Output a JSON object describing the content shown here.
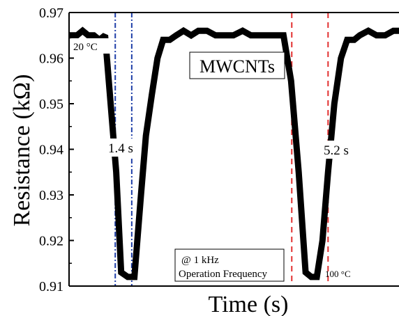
{
  "chart_data": {
    "type": "line",
    "title": "",
    "xlabel": "Time (s)",
    "ylabel": "Resistance (kΩ)",
    "ylim": [
      0.91,
      0.97
    ],
    "xlim": [
      0,
      100
    ],
    "yticks": [
      0.91,
      0.92,
      0.93,
      0.94,
      0.95,
      0.96,
      0.97
    ],
    "ytick_labels": [
      "0.91",
      "0.92",
      "0.93",
      "0.94",
      "0.95",
      "0.96",
      "0.97"
    ],
    "xticks_shown": false,
    "grid": false,
    "series": [
      {
        "color": "#000000",
        "x": [
          0,
          2.4,
          4.1,
          5.8,
          7.5,
          9.2,
          10.9,
          12.6,
          14.3,
          15.8,
          17.8,
          19.8,
          21.8,
          23.3,
          25.1,
          26.8,
          28.5,
          30.5,
          32.5,
          34.7,
          37.0,
          39.2,
          41.8,
          44.4,
          47.0,
          49.8,
          52.6,
          55.1,
          57.8,
          60.5,
          62.8,
          65.0,
          67.3,
          69.6,
          71.7,
          73.4,
          75.1,
          76.8,
          78.5,
          80.4,
          82.4,
          84.3,
          86.4,
          88.1,
          90.7,
          93.2,
          95.8,
          98.3,
          100
        ],
        "y": [
          0.965,
          0.965,
          0.966,
          0.965,
          0.965,
          0.964,
          0.965,
          0.95,
          0.935,
          0.913,
          0.912,
          0.912,
          0.93,
          0.943,
          0.952,
          0.96,
          0.964,
          0.964,
          0.965,
          0.966,
          0.965,
          0.966,
          0.966,
          0.965,
          0.965,
          0.965,
          0.966,
          0.965,
          0.965,
          0.965,
          0.965,
          0.965,
          0.955,
          0.935,
          0.913,
          0.912,
          0.912,
          0.92,
          0.935,
          0.95,
          0.96,
          0.964,
          0.964,
          0.965,
          0.966,
          0.965,
          0.965,
          0.966,
          0.966
        ]
      }
    ],
    "markers": [
      {
        "x": 14.0,
        "color": "#1f3fa8",
        "style": "dashdot"
      },
      {
        "x": 19.0,
        "color": "#1f3fa8",
        "style": "dashdot"
      },
      {
        "x": 67.5,
        "color": "#e23030",
        "style": "dashed"
      },
      {
        "x": 78.5,
        "color": "#e23030",
        "style": "dashed"
      }
    ],
    "annotations": {
      "start_temp": "20 °C",
      "end_temp": "100 °C",
      "material": "MWCNTs",
      "response_time_1": "1.4 s",
      "response_time_2": "5.2 s",
      "freq_line1": "@ 1 kHz",
      "freq_line2": "Operation Frequency"
    }
  }
}
